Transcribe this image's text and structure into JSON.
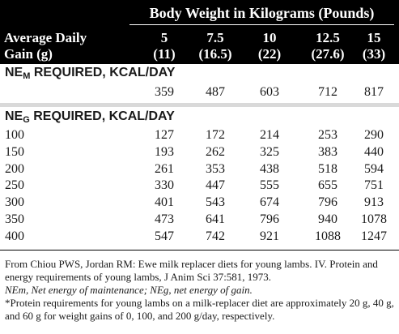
{
  "header": {
    "body_weight": "Body Weight in Kilograms (Pounds)",
    "row_label_line1": "Average Daily",
    "row_label_line2": "Gain (g)",
    "columns": [
      {
        "kg": "5",
        "lb": "(11)"
      },
      {
        "kg": "7.5",
        "lb": "(16.5)"
      },
      {
        "kg": "10",
        "lb": "(22)"
      },
      {
        "kg": "12.5",
        "lb": "(27.6)"
      },
      {
        "kg": "15",
        "lb": "(33)"
      }
    ]
  },
  "nem": {
    "title_pre": "NE",
    "title_sub": "M",
    "title_post": " REQUIRED, KCAL/DAY",
    "values": [
      "359",
      "487",
      "603",
      "712",
      "817"
    ]
  },
  "neg": {
    "title_pre": "NE",
    "title_sub": "G",
    "title_post": " REQUIRED, KCAL/DAY",
    "rows": [
      {
        "gain": "100",
        "values": [
          "127",
          "172",
          "214",
          "253",
          "290"
        ]
      },
      {
        "gain": "150",
        "values": [
          "193",
          "262",
          "325",
          "383",
          "440"
        ]
      },
      {
        "gain": "200",
        "values": [
          "261",
          "353",
          "438",
          "518",
          "594"
        ]
      },
      {
        "gain": "250",
        "values": [
          "330",
          "447",
          "555",
          "655",
          "751"
        ]
      },
      {
        "gain": "300",
        "values": [
          "401",
          "543",
          "674",
          "796",
          "913"
        ]
      },
      {
        "gain": "350",
        "values": [
          "473",
          "641",
          "796",
          "940",
          "1078"
        ]
      },
      {
        "gain": "400",
        "values": [
          "547",
          "742",
          "921",
          "1088",
          "1247"
        ]
      }
    ]
  },
  "footnotes": {
    "source": "From Chiou PWS, Jordan RM: Ewe milk replacer diets for young lambs. IV. Protein and energy requirements of young lambs, J Anim Sci 37:581, 1973.",
    "abbrev": "NEm, Net energy of maintenance; NEg, net energy of gain.",
    "protein": "*Protein requirements for young lambs on a milk-replacer diet are approximately 20 g, 40 g, and 60 g for weight gains of 0, 100, and 200 g/day, respectively."
  }
}
